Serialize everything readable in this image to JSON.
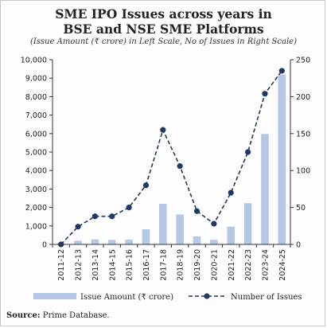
{
  "title_line1": "SME IPO Issues across years in",
  "title_line2": "BSE and NSE SME Platforms",
  "subtitle": "(Issue Amount (₹ crore) in Left Scale, No of Issues in Right Scale)",
  "source_label": "Source:",
  "source_text": "Prime Database.",
  "chart_data": {
    "type": "bar",
    "categories": [
      "2011-12",
      "2012-13",
      "2013-14",
      "2014-15",
      "2015-16",
      "2016-17",
      "2017-18",
      "2018-19",
      "2019-20",
      "2020-21",
      "2021-22",
      "2022-23",
      "2023-24",
      "2024-25"
    ],
    "series": [
      {
        "name": "Issue Amount (₹ crore)",
        "type": "bar",
        "axis": "left",
        "color": "#b4c7e7",
        "values": [
          50,
          200,
          270,
          240,
          260,
          820,
          2200,
          1620,
          430,
          250,
          960,
          2230,
          5980,
          9190
        ]
      },
      {
        "name": "Number of Issues",
        "type": "line",
        "axis": "right",
        "color": "#1f3864",
        "line_style": "dashed",
        "marker": "circle",
        "values": [
          0,
          24,
          38,
          38,
          50,
          80,
          155,
          106,
          45,
          28,
          70,
          125,
          204,
          235
        ]
      }
    ],
    "y_left": {
      "ylim": [
        0,
        10000
      ],
      "ticks": [
        0,
        1000,
        2000,
        3000,
        4000,
        5000,
        6000,
        7000,
        8000,
        9000,
        10000
      ],
      "tick_labels": [
        "0",
        "1,000",
        "2,000",
        "3,000",
        "4,000",
        "5,000",
        "6,000",
        "7,000",
        "8,000",
        "9,000",
        "10,000"
      ]
    },
    "y_right": {
      "ylim": [
        0,
        250
      ],
      "ticks": [
        0,
        50,
        100,
        150,
        200,
        250
      ],
      "tick_labels": [
        "0",
        "50",
        "100",
        "150",
        "200",
        "250"
      ]
    },
    "grid": false,
    "legend_position": "bottom"
  }
}
